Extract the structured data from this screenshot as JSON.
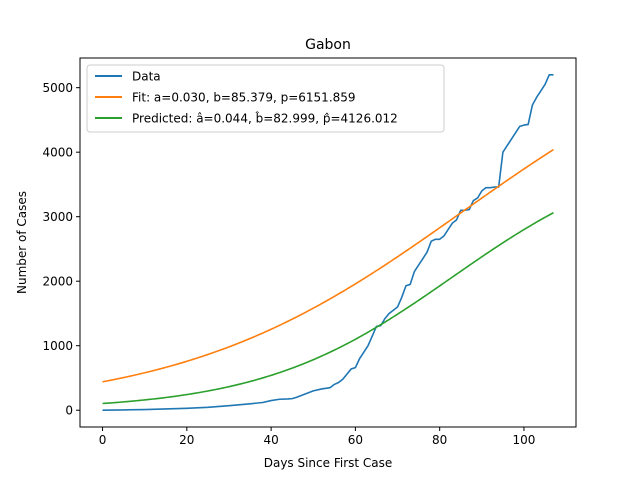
{
  "chart_data": {
    "type": "line",
    "title": "Gabon",
    "xlabel": "Days Since First Case",
    "ylabel": "Number of Cases",
    "xlim": [
      -5.35,
      112.35
    ],
    "ylim": [
      -260,
      5460
    ],
    "xticks": [
      0,
      20,
      40,
      60,
      80,
      100
    ],
    "yticks": [
      0,
      1000,
      2000,
      3000,
      4000,
      5000
    ],
    "grid": false,
    "legend_position": "top-left",
    "series": [
      {
        "name": "Data",
        "color": "#1f77b4",
        "x": [
          0,
          5,
          10,
          15,
          20,
          25,
          30,
          35,
          38,
          40,
          42,
          44,
          45,
          46,
          48,
          50,
          52,
          54,
          55,
          56,
          57,
          58,
          59,
          60,
          61,
          62,
          63,
          64,
          65,
          66,
          67,
          68,
          69,
          70,
          71,
          72,
          73,
          74,
          75,
          76,
          77,
          78,
          79,
          80,
          81,
          82,
          83,
          84,
          85,
          86,
          87,
          88,
          89,
          90,
          91,
          92,
          93,
          94,
          95,
          96,
          97,
          98,
          99,
          100,
          101,
          102,
          103,
          104,
          105,
          106,
          107
        ],
        "values": [
          1,
          5,
          10,
          20,
          30,
          45,
          70,
          100,
          120,
          150,
          170,
          175,
          180,
          200,
          250,
          300,
          330,
          350,
          400,
          430,
          480,
          560,
          640,
          660,
          800,
          900,
          1000,
          1150,
          1300,
          1310,
          1420,
          1500,
          1550,
          1600,
          1750,
          1930,
          1950,
          2150,
          2250,
          2350,
          2450,
          2620,
          2650,
          2650,
          2700,
          2800,
          2900,
          2950,
          3100,
          3100,
          3110,
          3250,
          3290,
          3400,
          3450,
          3450,
          3460,
          3460,
          4000,
          4100,
          4200,
          4300,
          4400,
          4420,
          4430,
          4730,
          4850,
          4950,
          5050,
          5200,
          5200
        ]
      },
      {
        "name": "Fit: a=0.030, b=85.379, p=6151.859",
        "color": "#ff7f0e",
        "model": {
          "a": 0.03,
          "b": 85.379,
          "p": 6151.859
        },
        "x_range": [
          0,
          107
        ]
      },
      {
        "name": "Predicted: â=0.044, b̂=82.999, p̂=4126.012",
        "color": "#2ca02c",
        "model": {
          "a": 0.044,
          "b": 82.999,
          "p": 4126.012
        },
        "x_range": [
          0,
          107
        ]
      }
    ]
  }
}
